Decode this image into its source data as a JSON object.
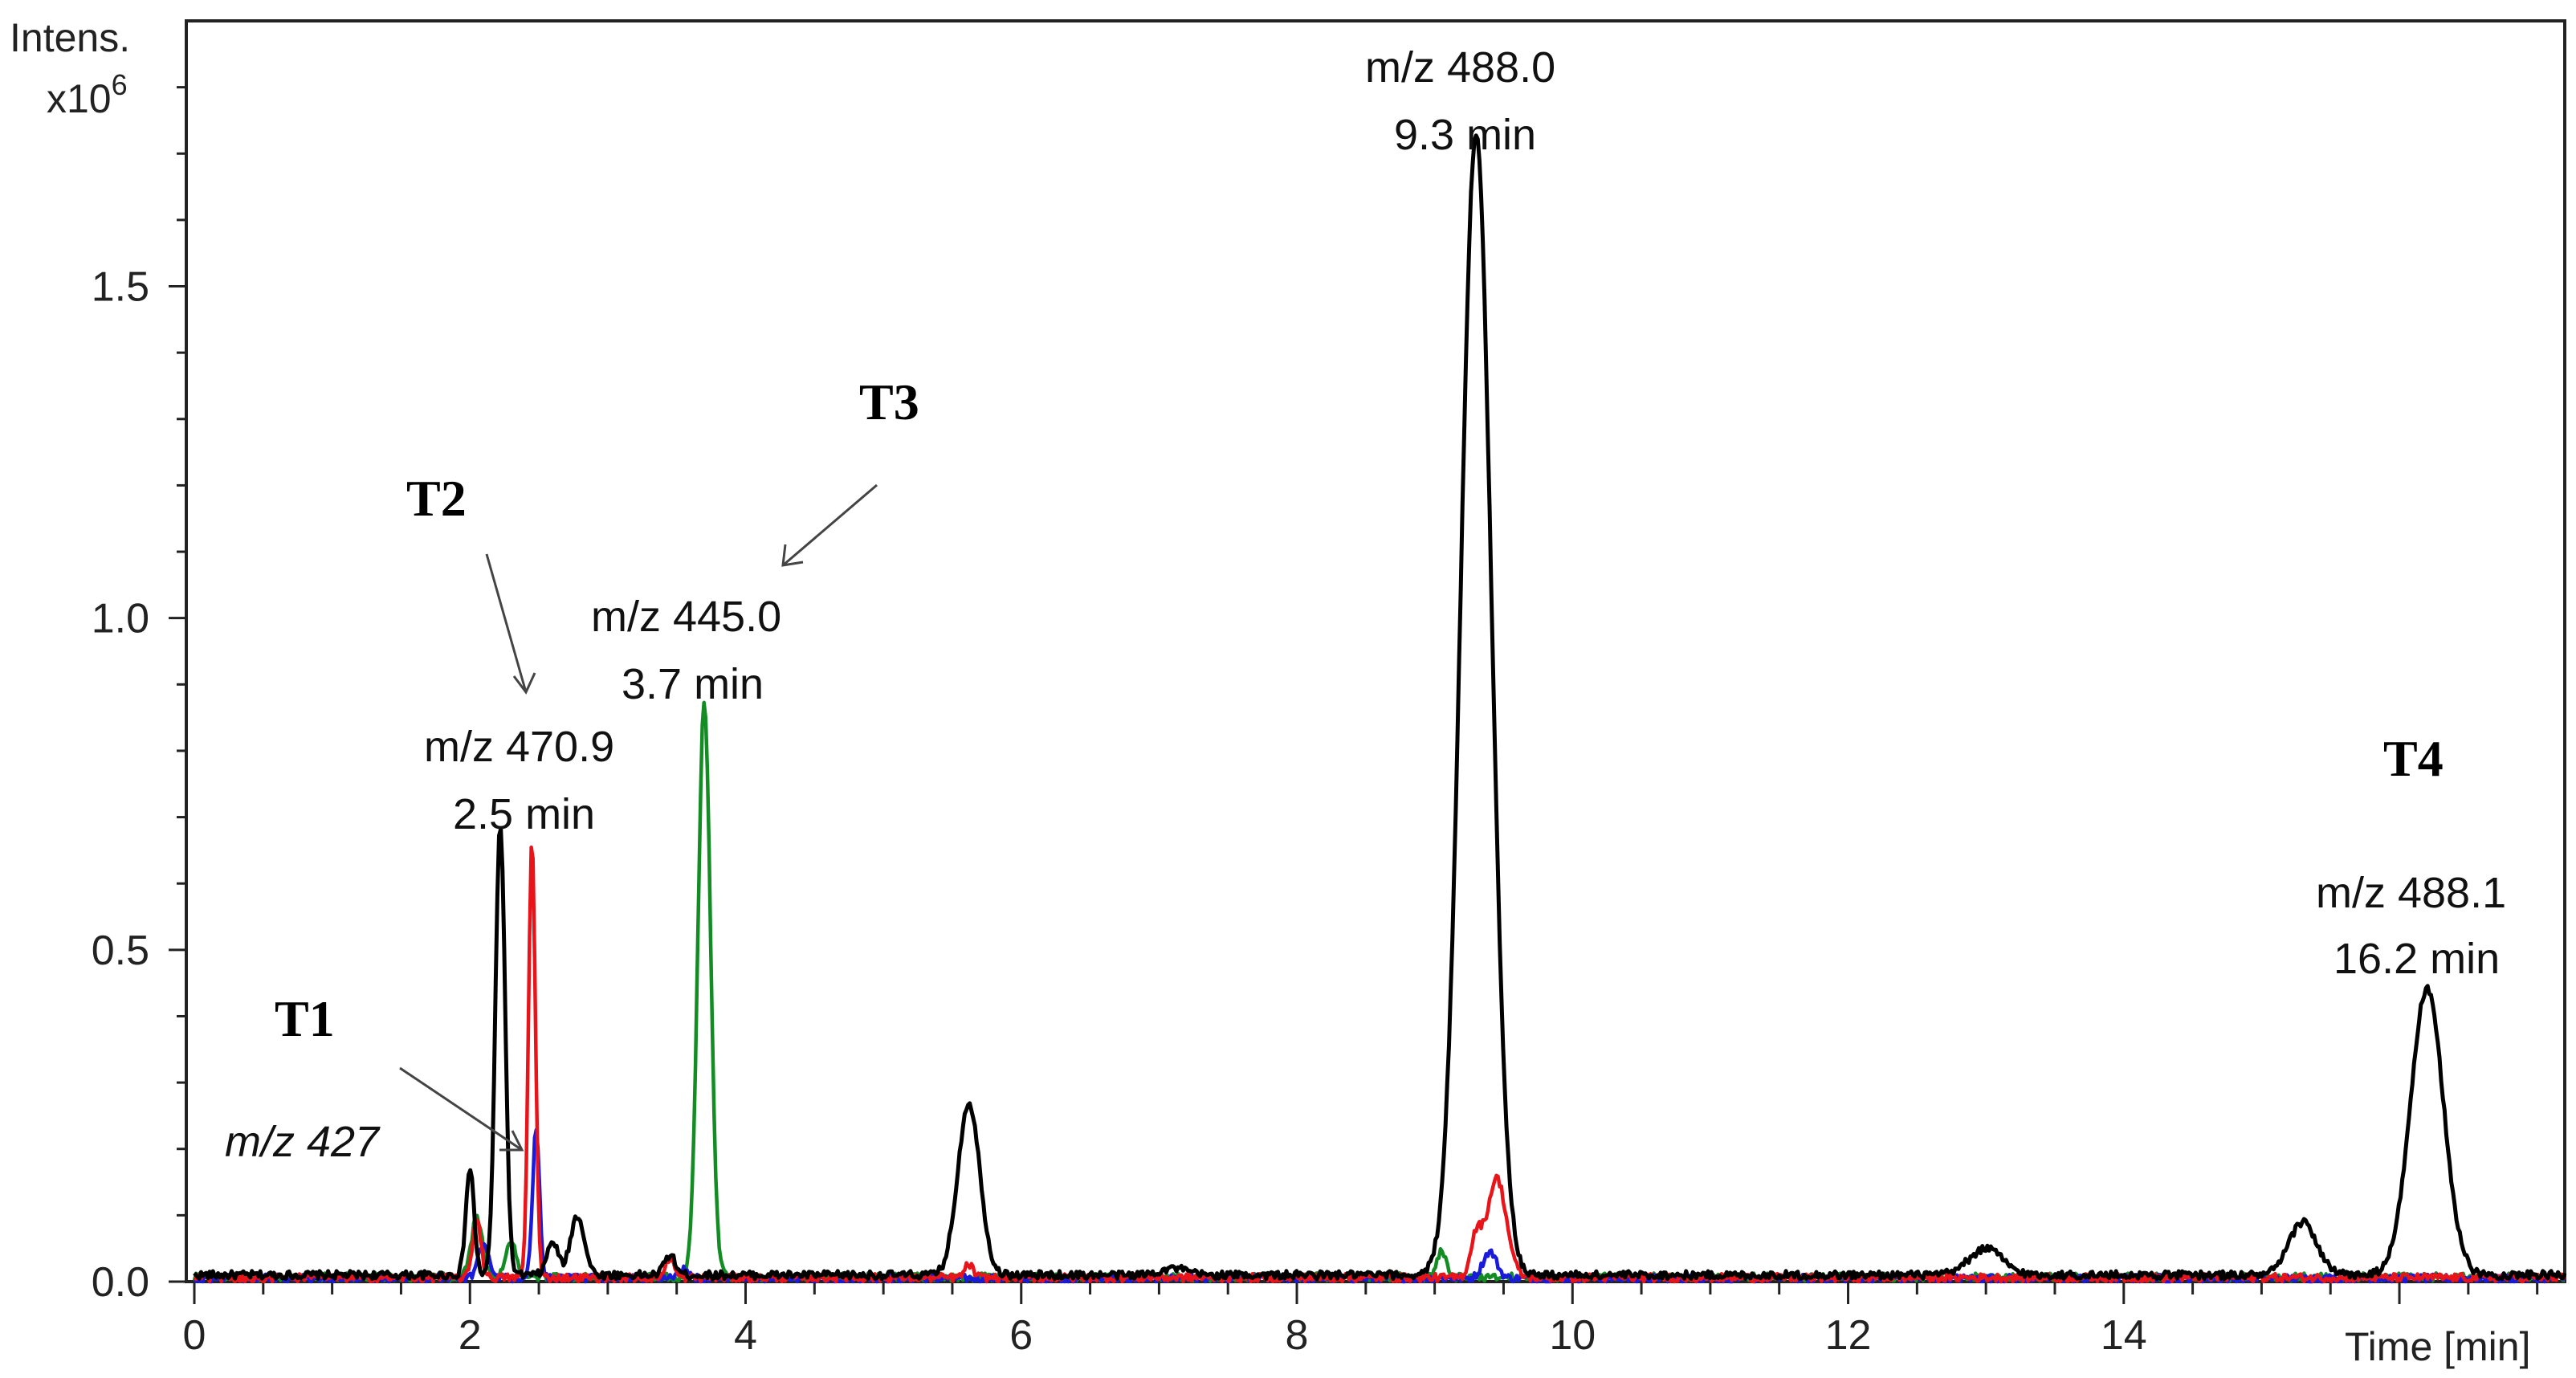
{
  "chart_data": {
    "type": "line",
    "ylabel": "Intens.",
    "ylabel_scale": "x10",
    "ylabel_exponent": "6",
    "xlabel": "Time [min]",
    "xlim": [
      0,
      17.2
    ],
    "ylim": [
      0,
      1.9
    ],
    "x_ticks": [
      "0",
      "2",
      "4",
      "6",
      "8",
      "10",
      "12",
      "14"
    ],
    "x_tick_values": [
      0,
      2,
      4,
      6,
      8,
      10,
      12,
      14
    ],
    "y_ticks": [
      "0.0",
      "0.5",
      "1.0",
      "1.5"
    ],
    "y_tick_values": [
      0,
      0.5,
      1.0,
      1.5
    ],
    "colors": {
      "black": "#000000",
      "red": "#e8141a",
      "blue": "#1a1adc",
      "green": "#128c23"
    },
    "series": [
      {
        "color": "#000000",
        "baseline": 0.01,
        "peaks": [
          [
            2.0,
            0.16,
            0.03
          ],
          [
            2.22,
            0.68,
            0.035
          ],
          [
            2.6,
            0.05,
            0.04
          ],
          [
            2.78,
            0.09,
            0.05
          ],
          [
            3.45,
            0.03,
            0.04
          ],
          [
            5.62,
            0.26,
            0.08
          ],
          [
            7.1,
            0.01,
            0.1
          ],
          [
            9.3,
            1.72,
            0.11
          ],
          [
            13.0,
            0.04,
            0.12
          ],
          [
            15.3,
            0.08,
            0.1
          ],
          [
            16.2,
            0.43,
            0.12
          ]
        ]
      },
      {
        "color": "#e8141a",
        "baseline": 0.006,
        "peaks": [
          [
            2.05,
            0.09,
            0.03
          ],
          [
            2.45,
            0.66,
            0.025
          ],
          [
            3.45,
            0.03,
            0.03
          ],
          [
            5.62,
            0.02,
            0.03
          ],
          [
            9.45,
            0.15,
            0.07
          ],
          [
            9.3,
            0.06,
            0.04
          ]
        ]
      },
      {
        "color": "#1a1adc",
        "baseline": 0.005,
        "peaks": [
          [
            2.1,
            0.05,
            0.04
          ],
          [
            2.48,
            0.23,
            0.025
          ],
          [
            3.55,
            0.015,
            0.03
          ],
          [
            9.4,
            0.04,
            0.05
          ]
        ]
      },
      {
        "color": "#128c23",
        "baseline": 0.007,
        "peaks": [
          [
            2.05,
            0.09,
            0.04
          ],
          [
            2.3,
            0.05,
            0.04
          ],
          [
            3.7,
            0.87,
            0.045
          ],
          [
            9.05,
            0.04,
            0.03
          ]
        ]
      }
    ],
    "annotations": [
      {
        "tag": "T1",
        "label": "m/z 427",
        "x": 2.4,
        "y": 0.22
      },
      {
        "tag": "T2",
        "label_line1": "m/z 470.9",
        "label_line2": "2.5 min",
        "x": 2.45,
        "y": 0.9
      },
      {
        "tag": "T3",
        "label_line1": "m/z 445.0",
        "label_line2": "3.7 min",
        "x": 3.7,
        "y": 1.12
      },
      {
        "label_line1": "m/z 488.0",
        "label_line2": "9.3 min",
        "x": 9.3
      },
      {
        "tag": "T4",
        "label_line1": "m/z 488.1",
        "label_line2": "16.2 min",
        "x": 16.2
      }
    ]
  },
  "labels": {
    "t1_tag": "T1",
    "t1_mz": "m/z 427",
    "t2_tag": "T2",
    "t2_mz": "m/z 470.9",
    "t2_time": "2.5 min",
    "t3_tag": "T3",
    "t3_mz": "m/z 445.0",
    "t3_time": "3.7 min",
    "p9_mz": "m/z 488.0",
    "p9_time": "9.3 min",
    "t4_tag": "T4",
    "t4_mz": "m/z 488.1",
    "t4_time": "16.2 min"
  }
}
